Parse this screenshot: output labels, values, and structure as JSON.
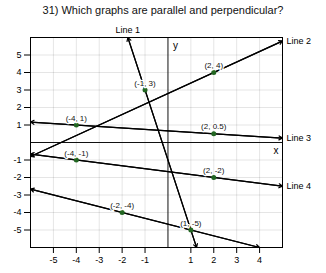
{
  "chart_data": {
    "type": "line",
    "title": "31) Which graphs are parallel and perpendicular?",
    "xlabel": "x",
    "ylabel": "y",
    "xlim": [
      -6,
      5
    ],
    "ylim": [
      -6,
      6
    ],
    "xticks": [
      -5,
      -4,
      -3,
      -2,
      -1,
      1,
      2,
      3,
      4
    ],
    "yticks": [
      -5,
      -4,
      -3,
      -2,
      -1,
      1,
      2,
      3,
      4,
      5
    ],
    "grid": true,
    "series": [
      {
        "name": "Line 1",
        "x": [
          -1.75,
          1.25
        ],
        "values": [
          6,
          -6
        ]
      },
      {
        "name": "Line 2",
        "x": [
          -6,
          5
        ],
        "values": [
          -0.8,
          5.8
        ]
      },
      {
        "name": "Line 3",
        "x": [
          -6,
          5
        ],
        "values": [
          1.1666666666666667,
          0.25
        ]
      },
      {
        "name": "Line 4",
        "x": [
          -6,
          5
        ],
        "values": [
          -0.6666666666666666,
          -2.5
        ]
      },
      {
        "x": [
          -6,
          4
        ],
        "values": [
          -2.666666666666667,
          -6
        ]
      }
    ],
    "points": {
      "color": "#226622",
      "type": "scatter",
      "x": [
        -1,
        2,
        -4,
        2,
        -4,
        2,
        -2,
        1
      ],
      "values": [
        3,
        4,
        1,
        0.5,
        -1,
        -2,
        -4,
        -5
      ]
    },
    "annotations": [
      {
        "text": "(-1, 3)",
        "x": -1,
        "y": 3
      },
      {
        "text": "(2, 4)",
        "x": 2,
        "y": 4
      },
      {
        "text": "(-4, 1)",
        "x": -4,
        "y": 1
      },
      {
        "text": "(2, 0.5)",
        "x": 2,
        "y": 0.5
      },
      {
        "text": "(-4, -1)",
        "x": -4,
        "y": -1
      },
      {
        "text": "(2, -2)",
        "x": 2,
        "y": -2
      },
      {
        "text": "(-2, -4)",
        "x": -2,
        "y": -4
      },
      {
        "text": "(1, -5)",
        "x": 1,
        "y": -5
      }
    ]
  }
}
